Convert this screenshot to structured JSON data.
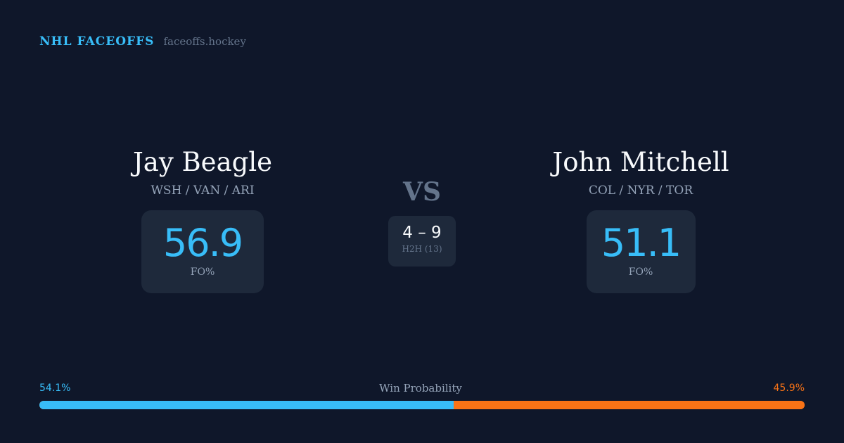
{
  "brand": {
    "name": "NHL FACEOFFS",
    "url": "faceoffs.hockey"
  },
  "player1": {
    "name": "Jay Beagle",
    "teams": "WSH / VAN / ARI",
    "fo_pct": "56.9",
    "fo_label": "FO%"
  },
  "player2": {
    "name": "John Mitchell",
    "teams": "COL / NYR / TOR",
    "fo_pct": "51.1",
    "fo_label": "FO%"
  },
  "vs": "VS",
  "h2h": {
    "score": "4 – 9",
    "label": "H2H (13)"
  },
  "win_probability": {
    "title": "Win Probability",
    "player1_label": "54.1%",
    "player2_label": "45.9%",
    "player1_value": 54.1,
    "player2_value": 45.9
  },
  "colors": {
    "accent": "#38bdf8",
    "opponent": "#f97316",
    "background": "#0f172a",
    "card": "#1e293b"
  }
}
